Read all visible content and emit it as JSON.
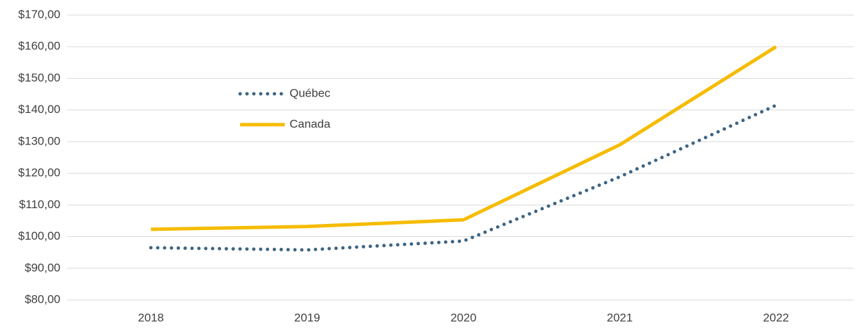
{
  "chart_data": {
    "type": "line",
    "categories": [
      "2018",
      "2019",
      "2020",
      "2021",
      "2022"
    ],
    "series": [
      {
        "name": "Québec",
        "color": "#3d6584",
        "dash": "dotted",
        "values": [
          96.5,
          95.8,
          98.6,
          118.9,
          141.5
        ]
      },
      {
        "name": "Canada",
        "color": "#f5bc00",
        "dash": "solid",
        "values": [
          102.3,
          103.2,
          105.3,
          129,
          160
        ]
      }
    ],
    "ylim": [
      80,
      170
    ],
    "yticks": [
      {
        "value": 80,
        "label": "$80,00"
      },
      {
        "value": 90,
        "label": "$90,00"
      },
      {
        "value": 100,
        "label": "$100,00"
      },
      {
        "value": 110,
        "label": "$110,00"
      },
      {
        "value": 120,
        "label": "$120,00"
      },
      {
        "value": 130,
        "label": "$130,00"
      },
      {
        "value": 140,
        "label": "$140,00"
      },
      {
        "value": 150,
        "label": "$150,00"
      },
      {
        "value": 160,
        "label": "$160,00"
      },
      {
        "value": 170,
        "label": "$170,00"
      }
    ],
    "grid": true
  }
}
